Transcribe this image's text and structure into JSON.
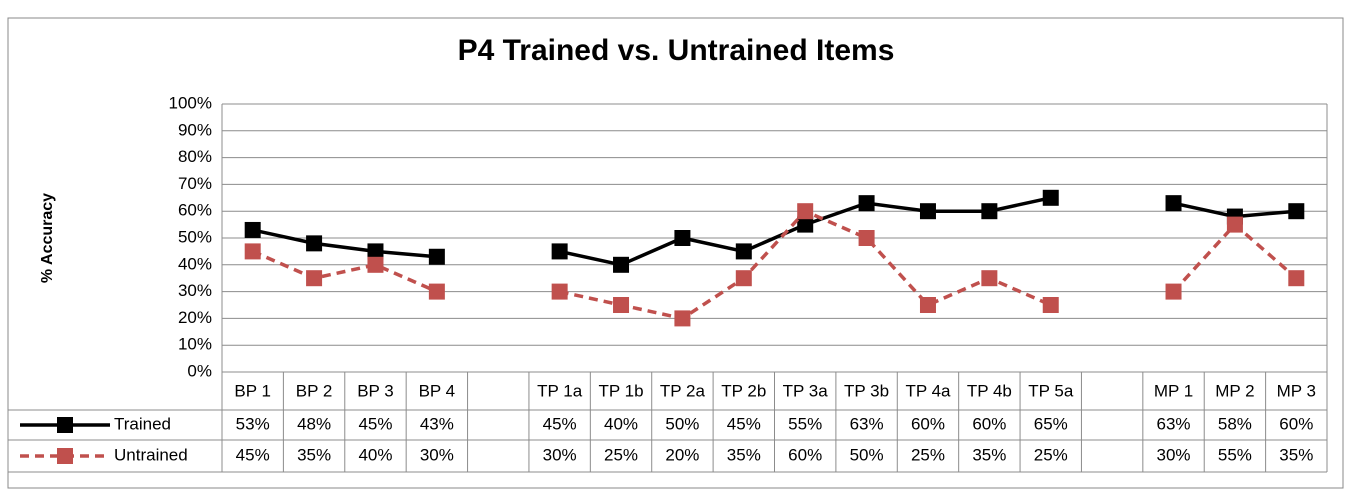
{
  "chart_data": {
    "type": "line",
    "title": "P4 Trained vs. Untrained Items",
    "y_label": "% Accuracy",
    "categories": [
      "BP 1",
      "BP 2",
      "BP 3",
      "BP 4",
      null,
      "TP 1a",
      "TP 1b",
      "TP 2a",
      "TP 2b",
      "TP 3a",
      "TP 3b",
      "TP 4a",
      "TP 4b",
      "TP 5a",
      null,
      "MP 1",
      "MP 2",
      "MP 3"
    ],
    "series": [
      {
        "name": "Trained",
        "color": "#000000",
        "dashed": false,
        "values": [
          53,
          48,
          45,
          43,
          null,
          45,
          40,
          50,
          45,
          55,
          63,
          60,
          60,
          65,
          null,
          63,
          58,
          60
        ],
        "value_labels": [
          "53%",
          "48%",
          "45%",
          "43%",
          null,
          "45%",
          "40%",
          "50%",
          "45%",
          "55%",
          "63%",
          "60%",
          "60%",
          "65%",
          null,
          "63%",
          "58%",
          "60%"
        ]
      },
      {
        "name": "Untrained",
        "color": "#c0504d",
        "dashed": true,
        "values": [
          45,
          35,
          40,
          30,
          null,
          30,
          25,
          20,
          35,
          60,
          50,
          25,
          35,
          25,
          null,
          30,
          55,
          35
        ],
        "value_labels": [
          "45%",
          "35%",
          "40%",
          "30%",
          null,
          "30%",
          "25%",
          "20%",
          "35%",
          "60%",
          "50%",
          "25%",
          "35%",
          "25%",
          null,
          "30%",
          "55%",
          "35%"
        ]
      }
    ],
    "ylim": [
      0,
      100
    ],
    "yticks": [
      {
        "value": 0,
        "label": "0%"
      },
      {
        "value": 10,
        "label": "10%"
      },
      {
        "value": 20,
        "label": "20%"
      },
      {
        "value": 30,
        "label": "30%"
      },
      {
        "value": 40,
        "label": "40%"
      },
      {
        "value": 50,
        "label": "50%"
      },
      {
        "value": 60,
        "label": "60%"
      },
      {
        "value": 70,
        "label": "70%"
      },
      {
        "value": 80,
        "label": "80%"
      },
      {
        "value": 90,
        "label": "90%"
      },
      {
        "value": 100,
        "label": "100%"
      }
    ],
    "grid": true
  }
}
